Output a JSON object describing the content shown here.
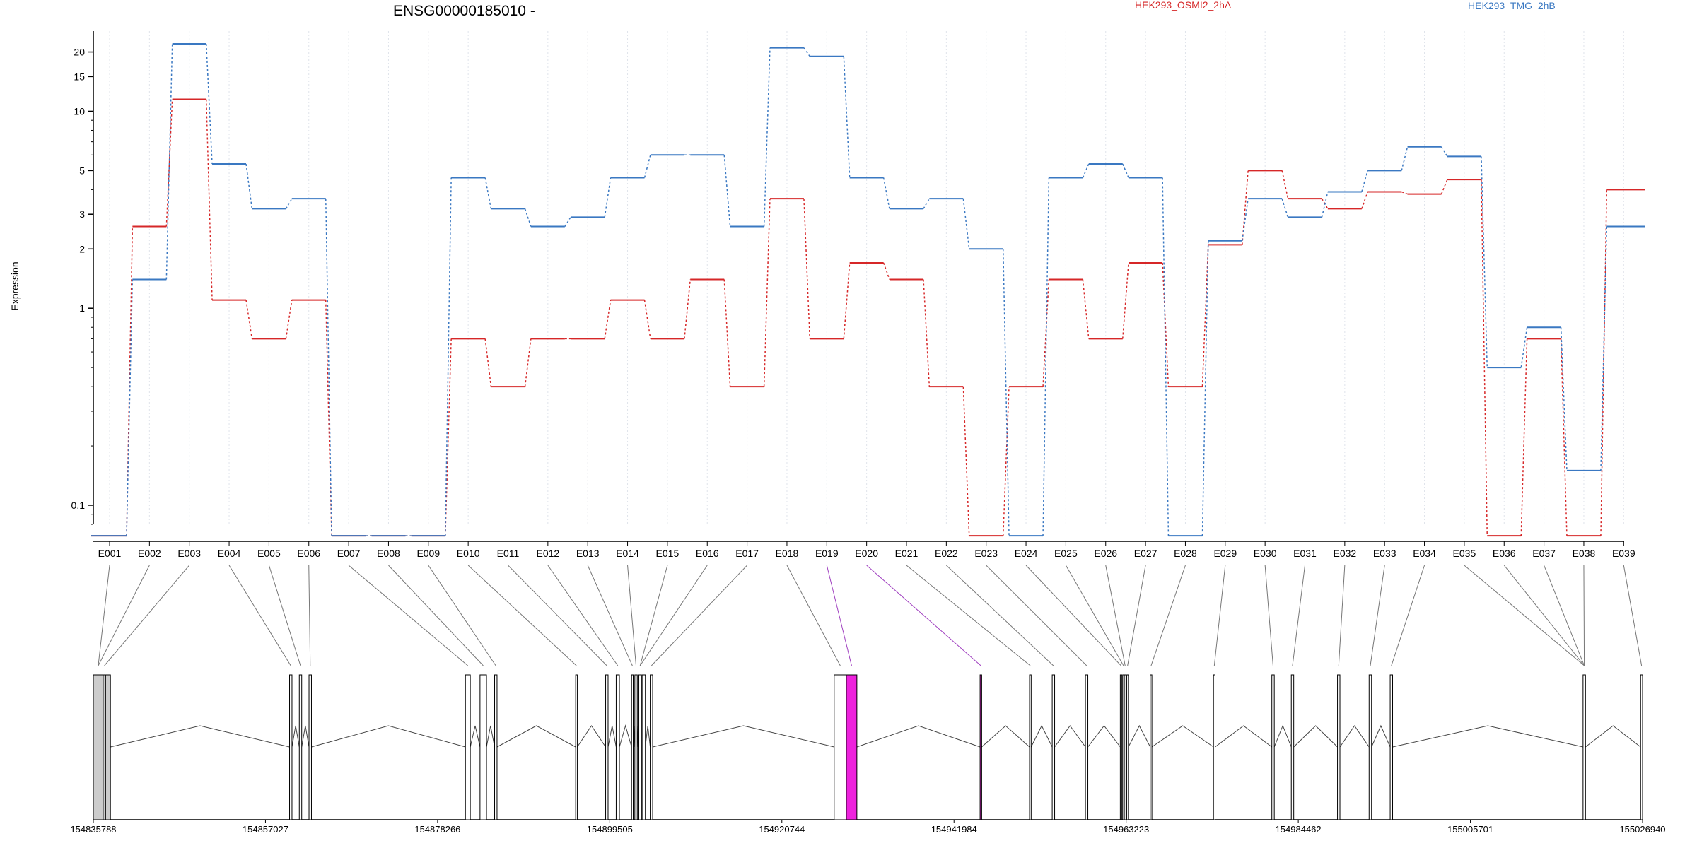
{
  "chart_data": {
    "type": "line",
    "title": "ENSG00000185010 -",
    "ylabel": "Expression",
    "xlabel": "",
    "y_scale": "log",
    "y_ticks": [
      0.1,
      1,
      2,
      3,
      5,
      10,
      15,
      20
    ],
    "y_tick_labels": [
      "0.1",
      "1",
      "2",
      "3",
      "5",
      "10",
      "15",
      "20"
    ],
    "ylim": [
      0.08,
      22
    ],
    "categories": [
      "E001",
      "E002",
      "E003",
      "E004",
      "E005",
      "E006",
      "E007",
      "E008",
      "E009",
      "E010",
      "E011",
      "E012",
      "E013",
      "E014",
      "E015",
      "E016",
      "E017",
      "E018",
      "E019",
      "E020",
      "E021",
      "E022",
      "E023",
      "E024",
      "E025",
      "E026",
      "E027",
      "E028",
      "E029",
      "E030",
      "E031",
      "E032",
      "E033",
      "E034",
      "E035",
      "E036",
      "E037",
      "E038",
      "E039"
    ],
    "series": [
      {
        "name": "HEK293_OSMI2_2hA",
        "color": "#d62728",
        "values": [
          0.07,
          2.6,
          11.5,
          1.1,
          0.7,
          1.1,
          0.07,
          0.07,
          0.07,
          0.7,
          0.4,
          0.7,
          0.7,
          1.1,
          0.7,
          1.4,
          0.4,
          3.6,
          0.7,
          1.7,
          1.4,
          0.4,
          0.07,
          0.4,
          1.4,
          0.7,
          1.7,
          0.4,
          2.1,
          5.0,
          3.6,
          3.2,
          3.9,
          3.8,
          4.5,
          0.07,
          0.7,
          0.07,
          4.0
        ]
      },
      {
        "name": "HEK293_TMG_2hB",
        "color": "#3a78c2",
        "values": [
          0.07,
          1.4,
          22,
          5.4,
          3.2,
          3.6,
          0.07,
          0.07,
          0.07,
          4.6,
          3.2,
          2.6,
          2.9,
          4.6,
          6.0,
          6.0,
          2.6,
          21,
          19,
          4.6,
          3.2,
          3.6,
          2.0,
          0.07,
          4.6,
          5.4,
          4.6,
          0.07,
          2.2,
          3.6,
          2.9,
          3.9,
          5.0,
          6.6,
          5.9,
          0.5,
          0.8,
          0.15,
          2.6
        ]
      }
    ],
    "legend_position": "top-right",
    "grid": "vertical dotted lines at exon centers",
    "gene_track": {
      "exon_colors": {
        "normal": "#ffffff",
        "first": "#cccccc",
        "highlight": "#ee22dd"
      },
      "highlight_exons": [
        "E019",
        "E020"
      ],
      "coordinates": [
        154835788,
        154857027,
        154878266,
        154899505,
        154920744,
        154941984,
        154963223,
        154984462,
        155005701,
        155026940
      ],
      "coordinate_labels": [
        "154835788",
        "154857027",
        "154878266",
        "154899505",
        "154920744",
        "154941984",
        "154963223",
        "154984462",
        "155005701",
        "155026940"
      ],
      "exons": [
        [
          154835788,
          154837000
        ],
        [
          154837000,
          154837300
        ],
        [
          154837300,
          154837900
        ],
        [
          154860000,
          154860300
        ],
        [
          154861200,
          154861500
        ],
        [
          154862400,
          154862700
        ],
        [
          154881700,
          154882300
        ],
        [
          154883500,
          154884300
        ],
        [
          154885300,
          154885600
        ],
        [
          154895300,
          154895500
        ],
        [
          154899000,
          154899300
        ],
        [
          154900300,
          154900700
        ],
        [
          154902200,
          154902400
        ],
        [
          154902600,
          154902900
        ],
        [
          154903100,
          154903400
        ],
        [
          154903500,
          154903900
        ],
        [
          154904500,
          154904800
        ],
        [
          154927200,
          154928700
        ],
        [
          154928700,
          154930000
        ],
        [
          154945200,
          154945400
        ],
        [
          154951300,
          154951500
        ],
        [
          154954100,
          154954400
        ],
        [
          154958200,
          154958500
        ],
        [
          154962500,
          154962700
        ],
        [
          154962800,
          154963000
        ],
        [
          154963000,
          154963200
        ],
        [
          154963300,
          154963500
        ],
        [
          154966200,
          154966400
        ],
        [
          154974000,
          154974200
        ],
        [
          154981200,
          154981500
        ],
        [
          154983600,
          154983900
        ],
        [
          154989300,
          154989600
        ],
        [
          154993200,
          154993500
        ],
        [
          154995800,
          154996100
        ],
        [
          155019600,
          155019900
        ],
        [
          155026700,
          155026940
        ]
      ],
      "exon_connectors": [
        0,
        0,
        1,
        3,
        4,
        5,
        6,
        7,
        8,
        9,
        10,
        11,
        12,
        13,
        14,
        14,
        16,
        17,
        18,
        19,
        20,
        21,
        22,
        23,
        24,
        25,
        26,
        27,
        28,
        29,
        30,
        31,
        32,
        33,
        34,
        34,
        34,
        34,
        35
      ]
    }
  },
  "legend": {
    "series1": "HEK293_OSMI2_2hA",
    "series2": "HEK293_TMG_2hB"
  }
}
